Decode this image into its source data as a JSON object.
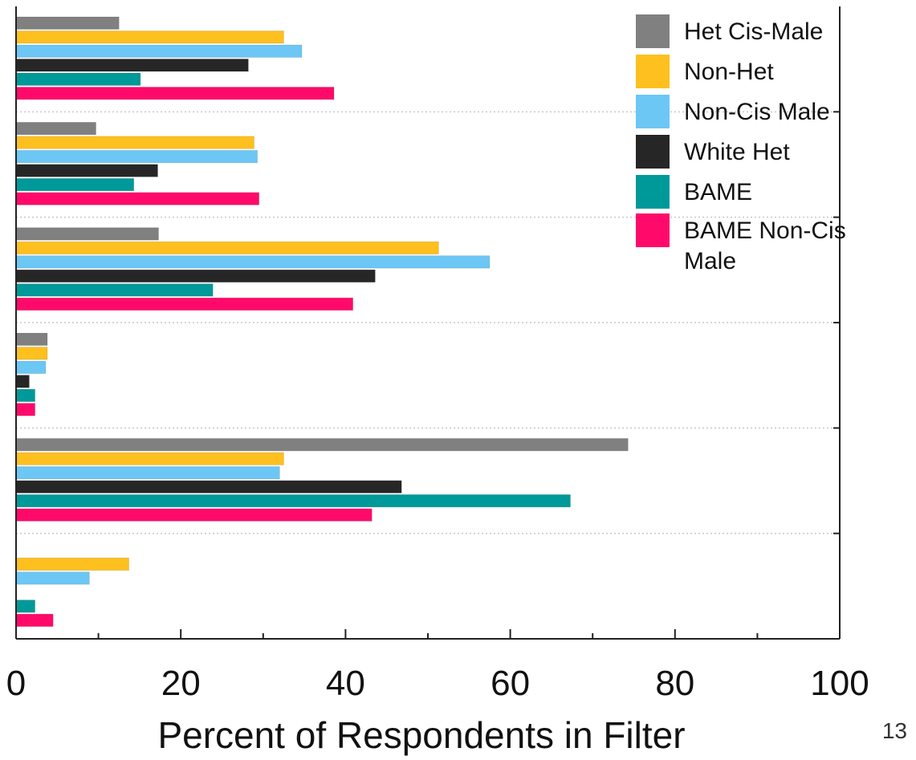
{
  "page_number": "13",
  "chart_data": {
    "type": "bar",
    "orientation": "horizontal",
    "xlabel": "Percent of Respondents in Filter",
    "xlim": [
      0,
      100
    ],
    "xticks": [
      "0",
      "20",
      "40",
      "60",
      "80",
      "100"
    ],
    "categories": [
      "",
      "",
      "",
      "",
      "",
      ""
    ],
    "grid": "dotted horizontal separators between groups",
    "legend_position": "top-right",
    "series": [
      {
        "name": "Het Cis-Male",
        "color": "#808080",
        "values": [
          12.5,
          9.7,
          17.3,
          3.8,
          74.3,
          0
        ]
      },
      {
        "name": "Non-Het",
        "color": "#FDC01E",
        "values": [
          32.5,
          28.9,
          51.3,
          3.8,
          32.5,
          13.7
        ]
      },
      {
        "name": "Non-Cis Male",
        "color": "#6CC7F5",
        "values": [
          34.7,
          29.3,
          57.5,
          3.6,
          32.0,
          8.9
        ]
      },
      {
        "name": "White Het",
        "color": "#262626",
        "values": [
          28.2,
          17.2,
          43.6,
          1.6,
          46.8,
          0
        ]
      },
      {
        "name": "BAME",
        "color": "#009999",
        "values": [
          15.1,
          14.3,
          23.9,
          2.3,
          67.3,
          2.3
        ]
      },
      {
        "name": "BAME Non-Cis Male",
        "color": "#FF0A6A",
        "values": [
          38.6,
          29.5,
          40.9,
          2.3,
          43.2,
          4.5
        ]
      }
    ]
  }
}
